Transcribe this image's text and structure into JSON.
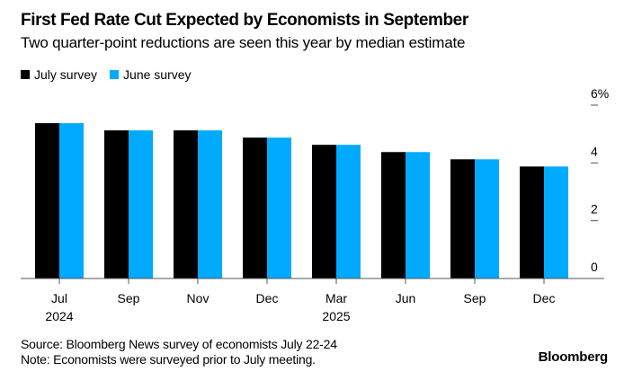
{
  "chart_data": {
    "type": "bar",
    "title": "First Fed Rate Cut Expected by Economists in September",
    "subtitle": "Two quarter-point reductions are seen this year by median estimate",
    "categories": [
      "Jul",
      "Sep",
      "Nov",
      "Dec",
      "Mar",
      "Jun",
      "Sep",
      "Dec"
    ],
    "category_years": [
      "2024",
      "",
      "",
      "",
      "2025",
      "",
      "",
      ""
    ],
    "series": [
      {
        "name": "July survey",
        "color": "#000000",
        "values": [
          5.375,
          5.125,
          5.125,
          4.875,
          4.625,
          4.375,
          4.125,
          3.875
        ]
      },
      {
        "name": "June survey",
        "color": "#00aaff",
        "values": [
          5.375,
          5.125,
          5.125,
          4.875,
          4.625,
          4.375,
          4.125,
          3.875
        ]
      }
    ],
    "ylim": [
      0,
      6
    ],
    "yticks": [
      0,
      2,
      4,
      6
    ],
    "ytick_labels": [
      "0",
      "2",
      "4",
      "6%"
    ],
    "yaxis_position": "right",
    "legend_position": "top-left",
    "xlabel": "",
    "ylabel": ""
  },
  "footer": {
    "source": "Source: Bloomberg News survey of economists July 22-24",
    "note": "Note: Economists were surveyed prior to July meeting.",
    "brand": "Bloomberg"
  }
}
